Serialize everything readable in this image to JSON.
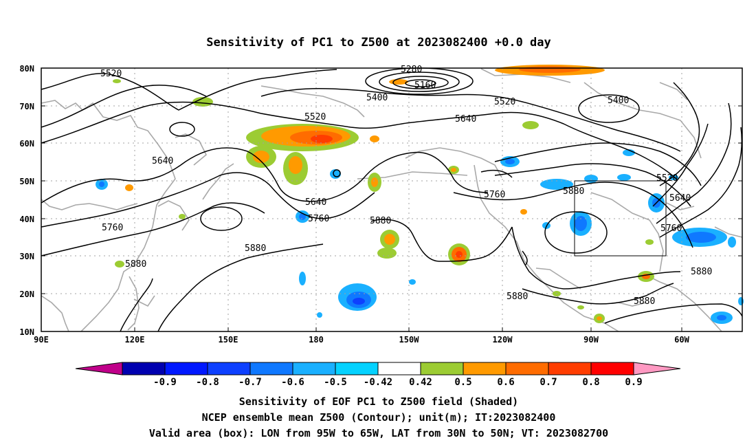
{
  "title": "Sensitivity of PC1 to Z500 at 2023082400 +0.0 day",
  "lat_labels": [
    "80N",
    "70N",
    "60N",
    "50N",
    "40N",
    "30N",
    "20N",
    "10N"
  ],
  "lon_labels": [
    "90E",
    "120E",
    "150E",
    "180",
    "150W",
    "120W",
    "90W",
    "60W"
  ],
  "contour_labels": [
    "5520",
    "5280",
    "5160",
    "5400",
    "5520",
    "5640",
    "5400",
    "5520",
    "5640",
    "5640",
    "5760",
    "5640",
    "5760",
    "5880",
    "5520",
    "5640",
    "5760",
    "5760",
    "5880",
    "5880",
    "5880",
    "5880",
    "5880",
    "5880"
  ],
  "colorbar": {
    "labels": [
      "-0.9",
      "-0.8",
      "-0.7",
      "-0.6",
      "-0.5",
      "-0.42",
      "0.42",
      "0.5",
      "0.6",
      "0.7",
      "0.8",
      "0.9"
    ],
    "colors": [
      "#c0008a",
      "#0000b0",
      "#0018ff",
      "#0d40ff",
      "#0f78ff",
      "#1ab0ff",
      "#05d2ff",
      "#ffffff",
      "#9ccc33",
      "#ff9a00",
      "#ff6c00",
      "#ff3d00",
      "#ff0000",
      "#ff99c2"
    ]
  },
  "valid_box": {
    "lon_range": [
      "95W",
      "65W"
    ],
    "lat_range": [
      "30N",
      "50N"
    ]
  },
  "caption": [
    "Sensitivity of EOF PC1 to Z500 field (Shaded)",
    "NCEP ensemble mean Z500 (Contour); unit(m); IT:2023082400",
    "Valid area (box): LON from 95W to 65W, LAT from 30N to 50N; VT: 2023082700"
  ]
}
